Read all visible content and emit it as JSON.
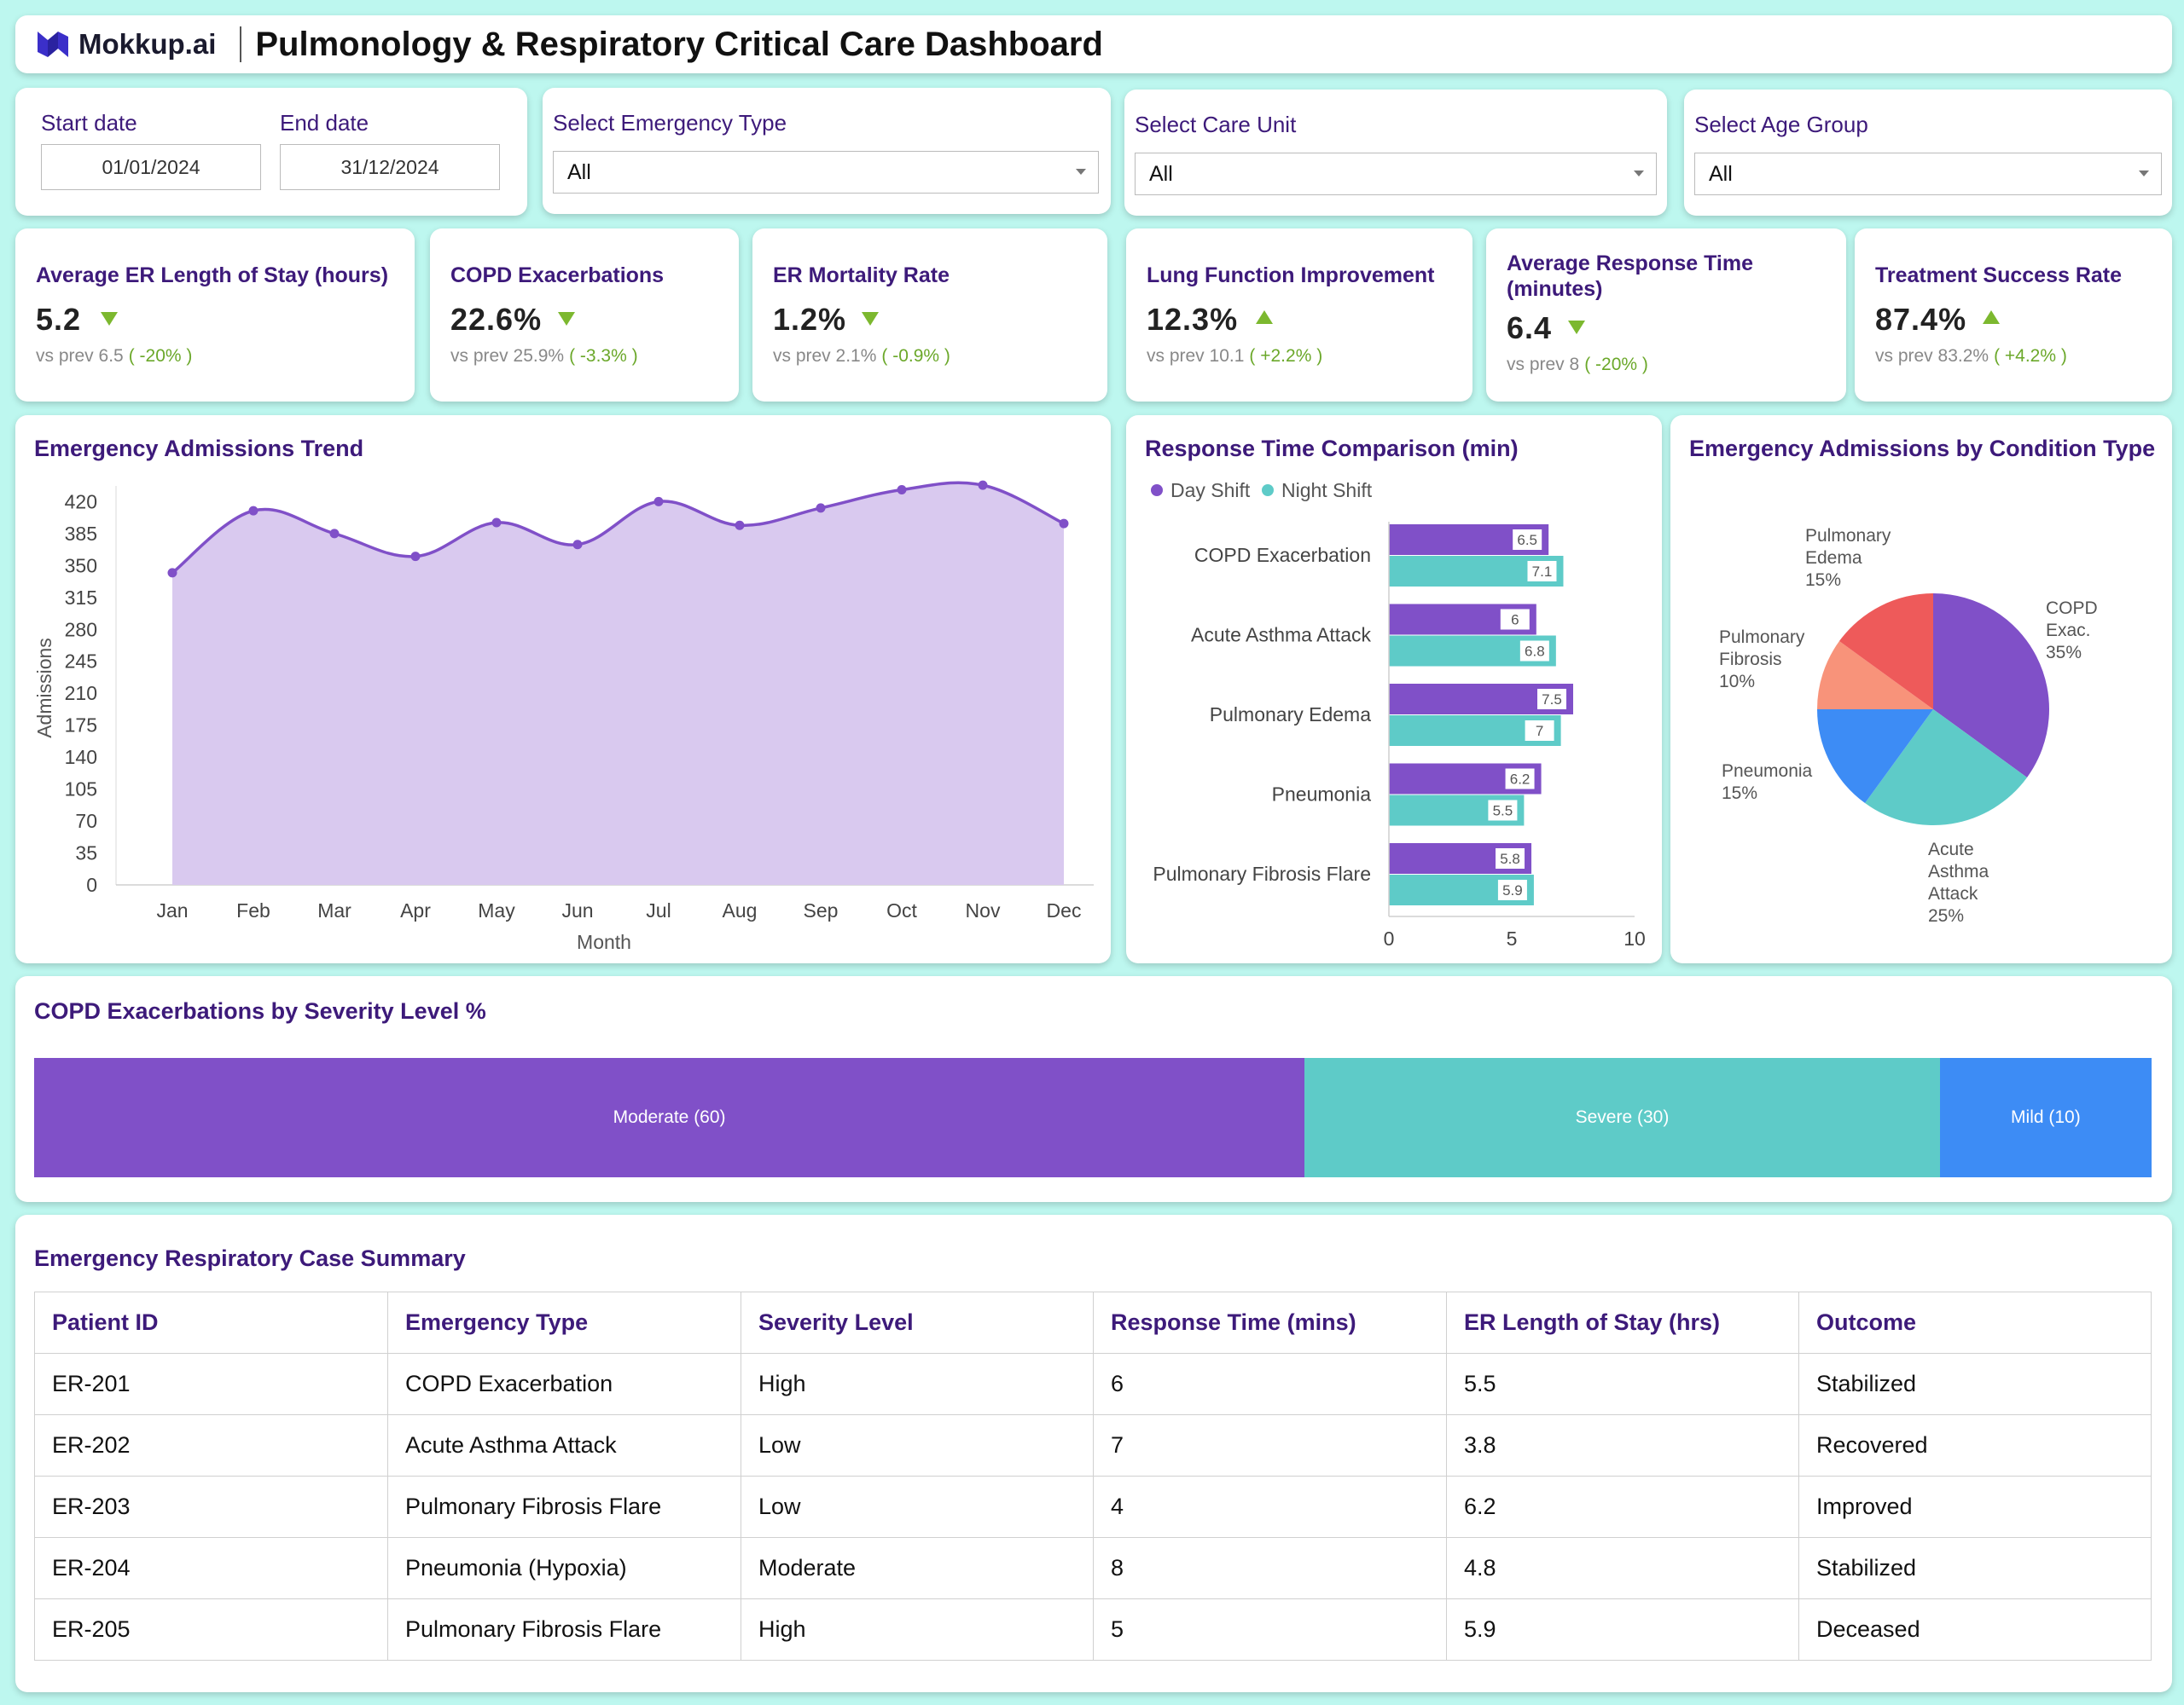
{
  "header": {
    "logo_text": "Mokkup.ai",
    "title": "Pulmonology & Respiratory Critical Care Dashboard"
  },
  "filters": {
    "start_date_label": "Start date",
    "start_date_value": "01/01/2024",
    "end_date_label": "End date",
    "end_date_value": "31/12/2024",
    "emergency_type_label": "Select Emergency Type",
    "emergency_type_value": "All",
    "care_unit_label": "Select Care Unit",
    "care_unit_value": "All",
    "age_group_label": "Select Age Group",
    "age_group_value": "All"
  },
  "kpis": [
    {
      "title": "Average ER Length of Stay (hours)",
      "value": "5.2",
      "direction": "down",
      "prev": "vs prev 6.5",
      "change": "( -20% )"
    },
    {
      "title": "COPD Exacerbations",
      "value": "22.6%",
      "direction": "down",
      "prev": "vs prev 25.9%",
      "change": "( -3.3% )"
    },
    {
      "title": "ER Mortality Rate",
      "value": "1.2%",
      "direction": "down",
      "prev": "vs prev 2.1%",
      "change": "( -0.9% )"
    },
    {
      "title": "Lung Function Improvement",
      "value": "12.3%",
      "direction": "up",
      "prev": "vs prev 10.1",
      "change": "( +2.2% )"
    },
    {
      "title": "Average Response Time (minutes)",
      "value": "6.4",
      "direction": "down",
      "prev": "vs prev 8",
      "change": "( -20% )"
    },
    {
      "title": "Treatment Success Rate",
      "value": "87.4%",
      "direction": "up",
      "prev": "vs prev 83.2%",
      "change": "( +4.2% )"
    }
  ],
  "colors": {
    "purple": "#8050c8",
    "teal": "#5ecbc8",
    "blue": "#3d8cf5",
    "salmon": "#f8937a",
    "red": "#ee5a5a",
    "area_fill": "#d9c9ef",
    "line": "#8050c8",
    "up_down_green": "#7cb82f"
  },
  "chart_data": [
    {
      "type": "area",
      "title": "Emergency Admissions Trend",
      "xlabel": "Month",
      "ylabel": "Admissions",
      "categories": [
        "Jan",
        "Feb",
        "Mar",
        "Apr",
        "May",
        "Jun",
        "Jul",
        "Aug",
        "Sep",
        "Oct",
        "Nov",
        "Dec"
      ],
      "values": [
        342,
        410,
        385,
        360,
        397,
        373,
        420,
        394,
        413,
        433,
        438,
        396
      ],
      "yticks": [
        0,
        35,
        70,
        105,
        140,
        175,
        210,
        245,
        280,
        315,
        350,
        385,
        420
      ],
      "ylim": [
        0,
        440
      ]
    },
    {
      "type": "bar",
      "orientation": "horizontal",
      "title": "Response Time Comparison (min)",
      "categories": [
        "COPD Exacerbation",
        "Acute Asthma Attack",
        "Pulmonary Edema",
        "Pneumonia",
        "Pulmonary Fibrosis Flare"
      ],
      "series": [
        {
          "name": "Day Shift",
          "values": [
            6.5,
            6,
            7.5,
            6.2,
            5.8
          ]
        },
        {
          "name": "Night Shift",
          "values": [
            7.1,
            6.8,
            7,
            5.5,
            5.9
          ]
        }
      ],
      "xticks": [
        0,
        5,
        10
      ],
      "xlim": [
        0,
        10
      ],
      "legend": "top-left"
    },
    {
      "type": "pie",
      "title": "Emergency Admissions by Condition Type",
      "slices": [
        {
          "label": "COPD Exac.",
          "value": 35,
          "pct": "35%"
        },
        {
          "label": "Acute Asthma Attack",
          "value": 25,
          "pct": "25%"
        },
        {
          "label": "Pneumonia",
          "value": 15,
          "pct": "15%"
        },
        {
          "label": "Pulmonary Fibrosis",
          "value": 10,
          "pct": "10%"
        },
        {
          "label": "Pulmonary Edema",
          "value": 15,
          "pct": "15%"
        }
      ]
    },
    {
      "type": "bar",
      "orientation": "stacked-horizontal",
      "title": "COPD Exacerbations by Severity Level %",
      "segments": [
        {
          "label": "Moderate (60)",
          "value": 60
        },
        {
          "label": "Severe (30)",
          "value": 30
        },
        {
          "label": "Mild (10)",
          "value": 10
        }
      ]
    }
  ],
  "table": {
    "title": "Emergency Respiratory Case Summary",
    "columns": [
      "Patient ID",
      "Emergency Type",
      "Severity Level",
      "Response Time (mins)",
      "ER Length of Stay (hrs)",
      "Outcome"
    ],
    "rows": [
      [
        "ER-201",
        "COPD Exacerbation",
        "High",
        "6",
        "5.5",
        "Stabilized"
      ],
      [
        "ER-202",
        "Acute Asthma Attack",
        "Low",
        "7",
        "3.8",
        "Recovered"
      ],
      [
        "ER-203",
        "Pulmonary Fibrosis Flare",
        "Low",
        "4",
        "6.2",
        "Improved"
      ],
      [
        "ER-204",
        "Pneumonia (Hypoxia)",
        "Moderate",
        "8",
        "4.8",
        "Stabilized"
      ],
      [
        "ER-205",
        "Pulmonary Fibrosis Flare",
        "High",
        "5",
        "5.9",
        "Deceased"
      ]
    ]
  }
}
